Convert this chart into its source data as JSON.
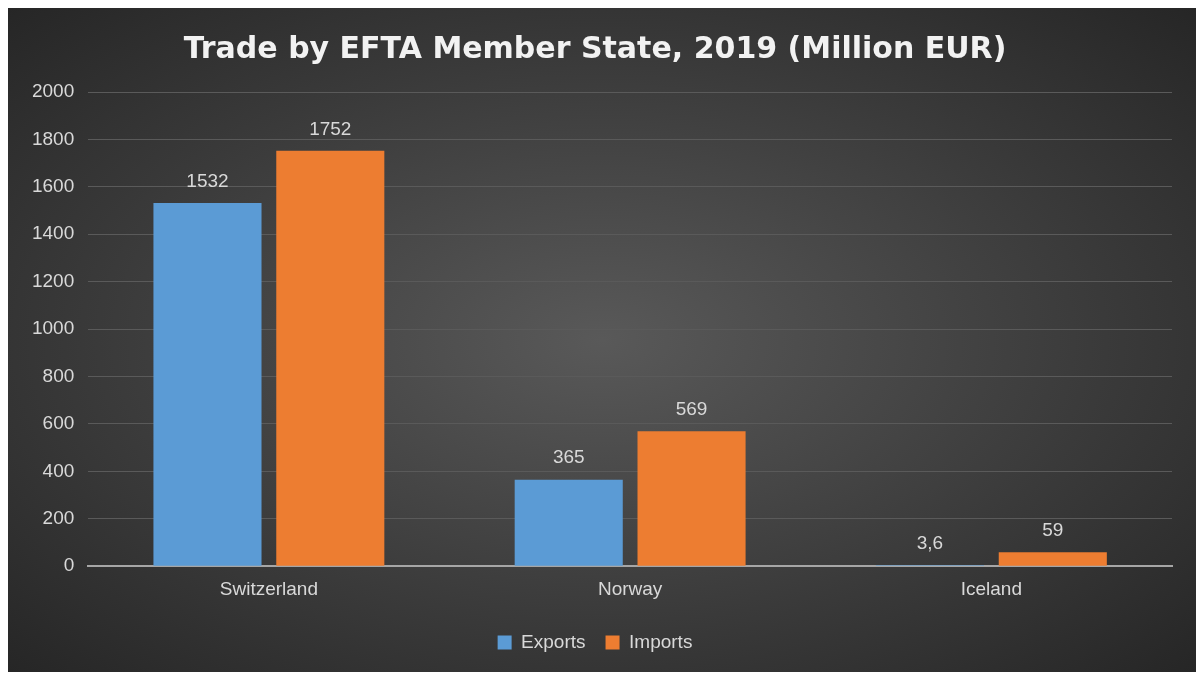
{
  "chart_data": {
    "type": "bar",
    "title": "Trade by EFTA Member State, 2019 (Million EUR)",
    "categories": [
      "Switzerland",
      "Norway",
      "Iceland"
    ],
    "series": [
      {
        "name": "Exports",
        "color": "#5b9bd5",
        "values": [
          1532,
          365,
          3.6
        ],
        "value_labels": [
          "1532",
          "365",
          "3,6"
        ]
      },
      {
        "name": "Imports",
        "color": "#ed7d31",
        "values": [
          1752,
          569,
          59
        ],
        "value_labels": [
          "1752",
          "569",
          "59"
        ]
      }
    ],
    "ylim": [
      0,
      2000
    ],
    "yticks": [
      0,
      200,
      400,
      600,
      800,
      1000,
      1200,
      1400,
      1600,
      1800,
      2000
    ],
    "grid": "y",
    "legend": "bottom"
  }
}
